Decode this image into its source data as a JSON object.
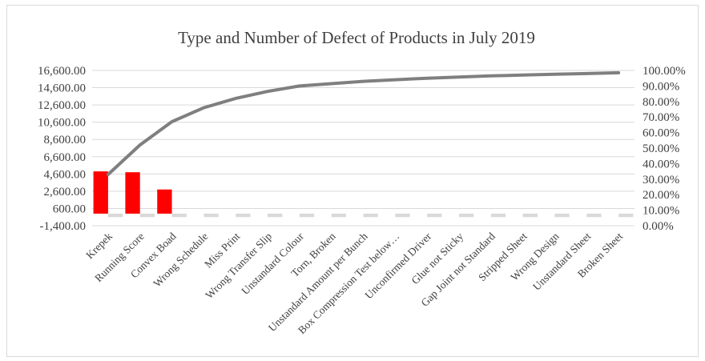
{
  "chart_data": {
    "type": "pareto",
    "title": "Type and Number of Defect of Products in July 2019",
    "categories": [
      "Krepek",
      "Running Score",
      "Convex Boad",
      "Wrong Schedule",
      "Miss Print",
      "Wrong Transfer Slip",
      "Unstandard Colour",
      "Torn, Broken",
      "Unstandard Amount per Bunch",
      "Box Compression Test below…",
      "Unconfirmed Driver",
      "Glue not Sticky",
      "Gap Joint not Standard",
      "Stripped Sheet",
      "Wrong Design",
      "Unstandard Sheet",
      "Broken Sheet"
    ],
    "series": [
      {
        "type": "bar",
        "color": "#ff0000",
        "values": [
          4900,
          4800,
          2800,
          0,
          0,
          0,
          0,
          0,
          0,
          0,
          0,
          0,
          0,
          0,
          0,
          0,
          0
        ]
      },
      {
        "type": "bar",
        "color": "#d9d9d9",
        "values": [
          -400,
          -400,
          -400,
          -400,
          -400,
          -400,
          -400,
          -400,
          -400,
          -400,
          -400,
          -400,
          -400,
          -400,
          -400,
          -400,
          -400
        ]
      },
      {
        "type": "line",
        "axis": "right",
        "color": "#7f7f7f",
        "values": [
          0.33,
          0.52,
          0.67,
          0.76,
          0.82,
          0.865,
          0.9,
          0.915,
          0.93,
          0.94,
          0.95,
          0.957,
          0.965,
          0.97,
          0.975,
          0.98,
          0.985
        ]
      }
    ],
    "y_left": {
      "ticks": [
        16600,
        14600,
        12600,
        10600,
        8600,
        6600,
        4600,
        2600,
        600,
        -1400
      ],
      "tick_labels": [
        "16,600.00",
        "14,600.00",
        "12,600.00",
        "10,600.00",
        "8,600.00",
        "6,600.00",
        "4,600.00",
        "2,600.00",
        "600.00",
        "-1,400.00"
      ],
      "ylim": [
        -1400,
        16600
      ]
    },
    "y_right": {
      "ticks": [
        1.0,
        0.9,
        0.8,
        0.7,
        0.6,
        0.5,
        0.4,
        0.3,
        0.2,
        0.1,
        0.0
      ],
      "tick_labels": [
        "100.00%",
        "90.00%",
        "80.00%",
        "70.00%",
        "60.00%",
        "50.00%",
        "40.00%",
        "30.00%",
        "20.00%",
        "10.00%",
        "0.00%"
      ],
      "ylim": [
        0,
        1
      ]
    },
    "grid": true,
    "legend": "none"
  }
}
